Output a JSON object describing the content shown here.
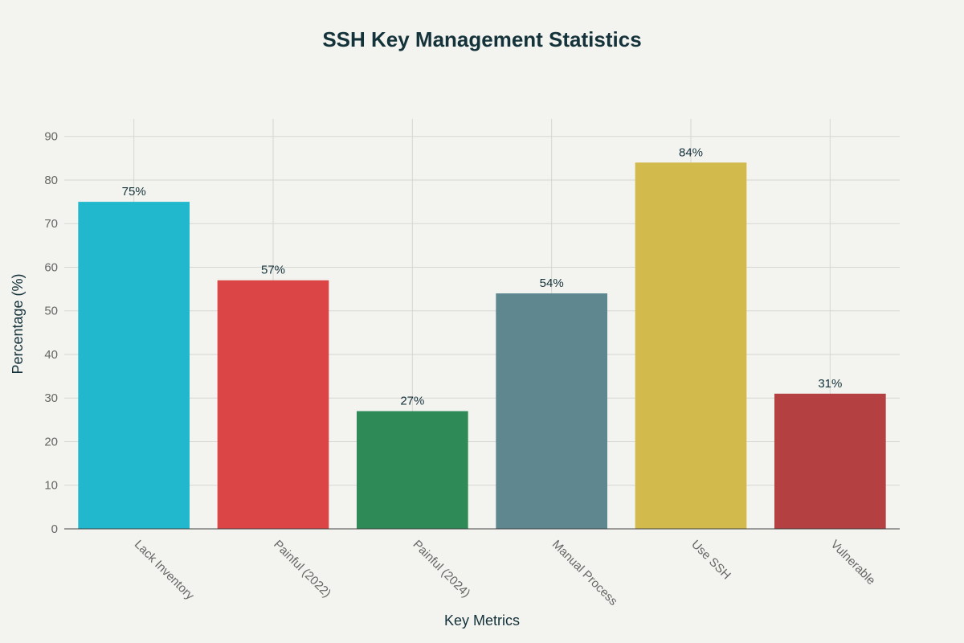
{
  "chart_data": {
    "type": "bar",
    "title": "SSH Key Management Statistics",
    "xlabel": "Key Metrics",
    "ylabel": "Percentage (%)",
    "categories": [
      "Lack Inventory",
      "Painful (2022)",
      "Painful (2024)",
      "Manual Process",
      "Use SSH",
      "Vulnerable"
    ],
    "values": [
      75,
      57,
      27,
      54,
      84,
      31
    ],
    "value_labels": [
      "75%",
      "57%",
      "27%",
      "54%",
      "84%",
      "31%"
    ],
    "colors": [
      "#21b8cd",
      "#db4545",
      "#2e8b57",
      "#5e8790",
      "#d2ba4c",
      "#b44041"
    ],
    "ylim": [
      0,
      94
    ],
    "yticks": [
      0,
      10,
      20,
      30,
      40,
      50,
      60,
      70,
      80,
      90
    ],
    "grid": true,
    "legend": "none"
  }
}
